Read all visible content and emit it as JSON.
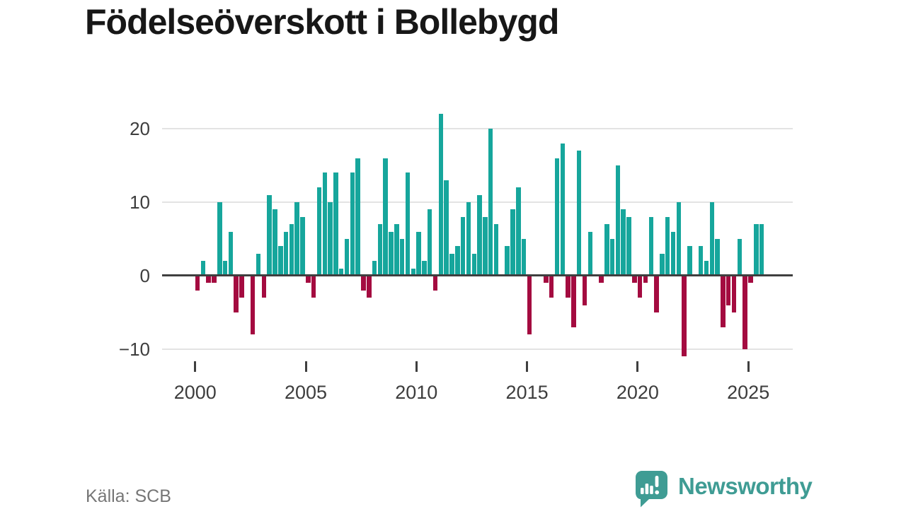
{
  "title": "Födelseöverskott i Bollebygd",
  "source": {
    "text": "Källa: SCB"
  },
  "logo": {
    "text": "Newsworthy",
    "icon": "speech-bubble-bar-chart-exclamation"
  },
  "colors": {
    "positive": "#16a69c",
    "negative": "#a40b40",
    "axis": "#3f3f3f",
    "grid": "#e3e3e3",
    "title": "#171717",
    "label": "#3d3d3d",
    "source": "#767676",
    "logo": "#3f9c94"
  },
  "chart_data": {
    "type": "bar",
    "title": "Födelseöverskott i Bollebygd",
    "xlabel": "",
    "ylabel": "",
    "freq": "quarterly",
    "start": "2000-Q1",
    "end": "2025-Q3",
    "grid": true,
    "legend": "none",
    "ylim": [
      -13.5,
      22.6
    ],
    "y_ticks": [
      20,
      10,
      0,
      -10
    ],
    "y_tick_labels": [
      "20",
      "10",
      "0",
      "−10"
    ],
    "x_tick_labels": [
      "2000",
      "2005",
      "2010",
      "2015",
      "2020",
      "2025"
    ],
    "quarters": [
      "2000-Q1",
      "2000-Q2",
      "2000-Q3",
      "2000-Q4",
      "2001-Q1",
      "2001-Q2",
      "2001-Q3",
      "2001-Q4",
      "2002-Q1",
      "2002-Q2",
      "2002-Q3",
      "2002-Q4",
      "2003-Q1",
      "2003-Q2",
      "2003-Q3",
      "2003-Q4",
      "2004-Q1",
      "2004-Q2",
      "2004-Q3",
      "2004-Q4",
      "2005-Q1",
      "2005-Q2",
      "2005-Q3",
      "2005-Q4",
      "2006-Q1",
      "2006-Q2",
      "2006-Q3",
      "2006-Q4",
      "2007-Q1",
      "2007-Q2",
      "2007-Q3",
      "2007-Q4",
      "2008-Q1",
      "2008-Q2",
      "2008-Q3",
      "2008-Q4",
      "2009-Q1",
      "2009-Q2",
      "2009-Q3",
      "2009-Q4",
      "2010-Q1",
      "2010-Q2",
      "2010-Q3",
      "2010-Q4",
      "2011-Q1",
      "2011-Q2",
      "2011-Q3",
      "2011-Q4",
      "2012-Q1",
      "2012-Q2",
      "2012-Q3",
      "2012-Q4",
      "2013-Q1",
      "2013-Q2",
      "2013-Q3",
      "2013-Q4",
      "2014-Q1",
      "2014-Q2",
      "2014-Q3",
      "2014-Q4",
      "2015-Q1",
      "2015-Q2",
      "2015-Q3",
      "2015-Q4",
      "2016-Q1",
      "2016-Q2",
      "2016-Q3",
      "2016-Q4",
      "2017-Q1",
      "2017-Q2",
      "2017-Q3",
      "2017-Q4",
      "2018-Q1",
      "2018-Q2",
      "2018-Q3",
      "2018-Q4",
      "2019-Q1",
      "2019-Q2",
      "2019-Q3",
      "2019-Q4",
      "2020-Q1",
      "2020-Q2",
      "2020-Q3",
      "2020-Q4",
      "2021-Q1",
      "2021-Q2",
      "2021-Q3",
      "2021-Q4",
      "2022-Q1",
      "2022-Q2",
      "2022-Q3",
      "2022-Q4",
      "2023-Q1",
      "2023-Q2",
      "2023-Q3",
      "2023-Q4",
      "2024-Q1",
      "2024-Q2",
      "2024-Q3",
      "2024-Q4",
      "2025-Q1",
      "2025-Q2",
      "2025-Q3"
    ],
    "values": [
      -2,
      2,
      -1,
      -1,
      10,
      2,
      6,
      -5,
      -3,
      0,
      -8,
      3,
      -3,
      11,
      9,
      4,
      6,
      7,
      10,
      8,
      -1,
      -3,
      12,
      14,
      10,
      14,
      1,
      5,
      14,
      16,
      -2,
      -3,
      2,
      7,
      16,
      6,
      7,
      5,
      14,
      1,
      6,
      2,
      9,
      -2,
      22,
      13,
      3,
      4,
      8,
      10,
      3,
      11,
      8,
      20,
      7,
      0,
      4,
      9,
      12,
      5,
      -8,
      0,
      0,
      -1,
      -3,
      16,
      18,
      -3,
      -7,
      17,
      -4,
      6,
      0,
      -1,
      7,
      5,
      15,
      9,
      8,
      -1,
      -3,
      -1,
      8,
      -5,
      3,
      8,
      6,
      10,
      -11,
      4,
      0,
      4,
      2,
      10,
      5,
      -7,
      -4,
      -5,
      5,
      -10,
      -1,
      7,
      7
    ]
  }
}
